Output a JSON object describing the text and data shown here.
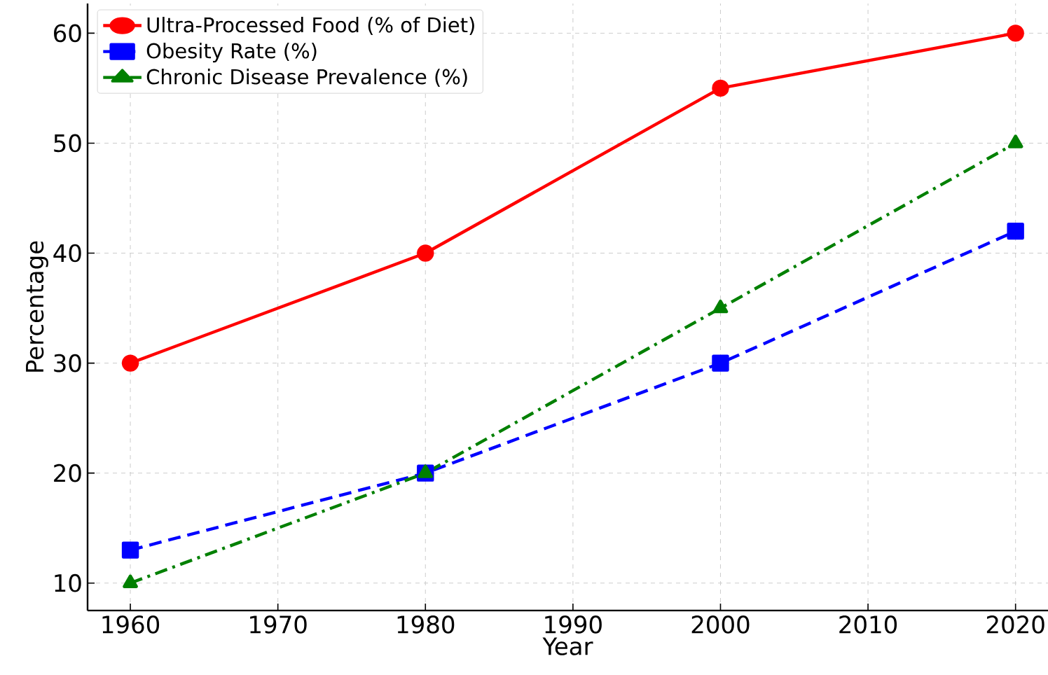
{
  "chart_data": {
    "type": "line",
    "xlabel": "Year",
    "ylabel": "Percentage",
    "x": [
      1960,
      1980,
      2000,
      2020
    ],
    "series": [
      {
        "name": "Ultra-Processed Food (% of Diet)",
        "color": "#ff0000",
        "values": [
          30,
          40,
          55,
          60
        ],
        "marker": "circle",
        "line_style": "solid"
      },
      {
        "name": "Obesity Rate (%)",
        "color": "#0000ff",
        "values": [
          13,
          20,
          30,
          42
        ],
        "marker": "square",
        "line_style": "dashed"
      },
      {
        "name": "Chronic Disease Prevalence (%)",
        "color": "#008000",
        "values": [
          10,
          20,
          35,
          50
        ],
        "marker": "triangle",
        "line_style": "dashdot"
      }
    ],
    "xlim": [
      1957.1,
      2022.2
    ],
    "ylim": [
      7.5,
      62.7
    ],
    "xticks": [
      1960,
      1970,
      1980,
      1990,
      2000,
      2010,
      2020
    ],
    "yticks": [
      10,
      20,
      30,
      40,
      50,
      60
    ],
    "grid": true,
    "legend": "top left"
  }
}
